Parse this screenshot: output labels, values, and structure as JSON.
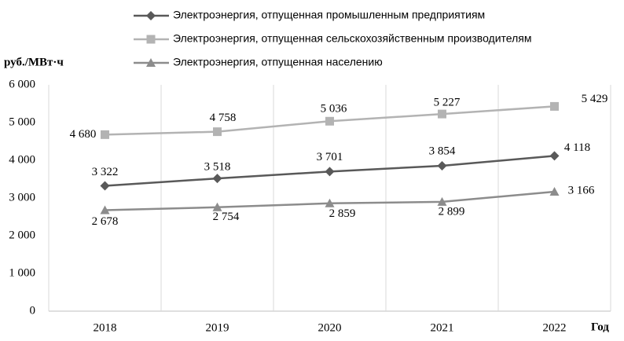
{
  "chart_data": {
    "type": "line",
    "y_axis_label": "руб./МВт·ч",
    "x_axis_label": "Год",
    "categories": [
      "2018",
      "2019",
      "2020",
      "2021",
      "2022"
    ],
    "series": [
      {
        "name": "Электроэнергия, отпущенная промышленным предприятиям",
        "color": "#595959",
        "marker": "diamond",
        "values": [
          3322,
          3518,
          3701,
          3854,
          4118
        ],
        "value_labels": [
          "3 322",
          "3 518",
          "3 701",
          "3 854",
          "4 118"
        ]
      },
      {
        "name": "Электроэнергия, отпущенная сельскохозяйственным производителям",
        "color": "#b3b3b3",
        "marker": "square",
        "values": [
          4680,
          4758,
          5036,
          5227,
          5429
        ],
        "value_labels": [
          "4 680",
          "4 758",
          "5 036",
          "5 227",
          "5 429"
        ]
      },
      {
        "name": "Электроэнергия, отпущенная населению",
        "color": "#8c8c8c",
        "marker": "triangle",
        "values": [
          2678,
          2754,
          2859,
          2899,
          3166
        ],
        "value_labels": [
          "2 678",
          "2 754",
          "2 859",
          "2 899",
          "3 166"
        ]
      }
    ],
    "ylim": [
      0,
      6000
    ],
    "yticks": [
      {
        "value": 0,
        "label": "0"
      },
      {
        "value": 1000,
        "label": "1 000"
      },
      {
        "value": 2000,
        "label": "2 000"
      },
      {
        "value": 3000,
        "label": "3 000"
      },
      {
        "value": 4000,
        "label": "4 000"
      },
      {
        "value": 5000,
        "label": "5 000"
      },
      {
        "value": 6000,
        "label": "6 000"
      }
    ],
    "grid": true
  }
}
